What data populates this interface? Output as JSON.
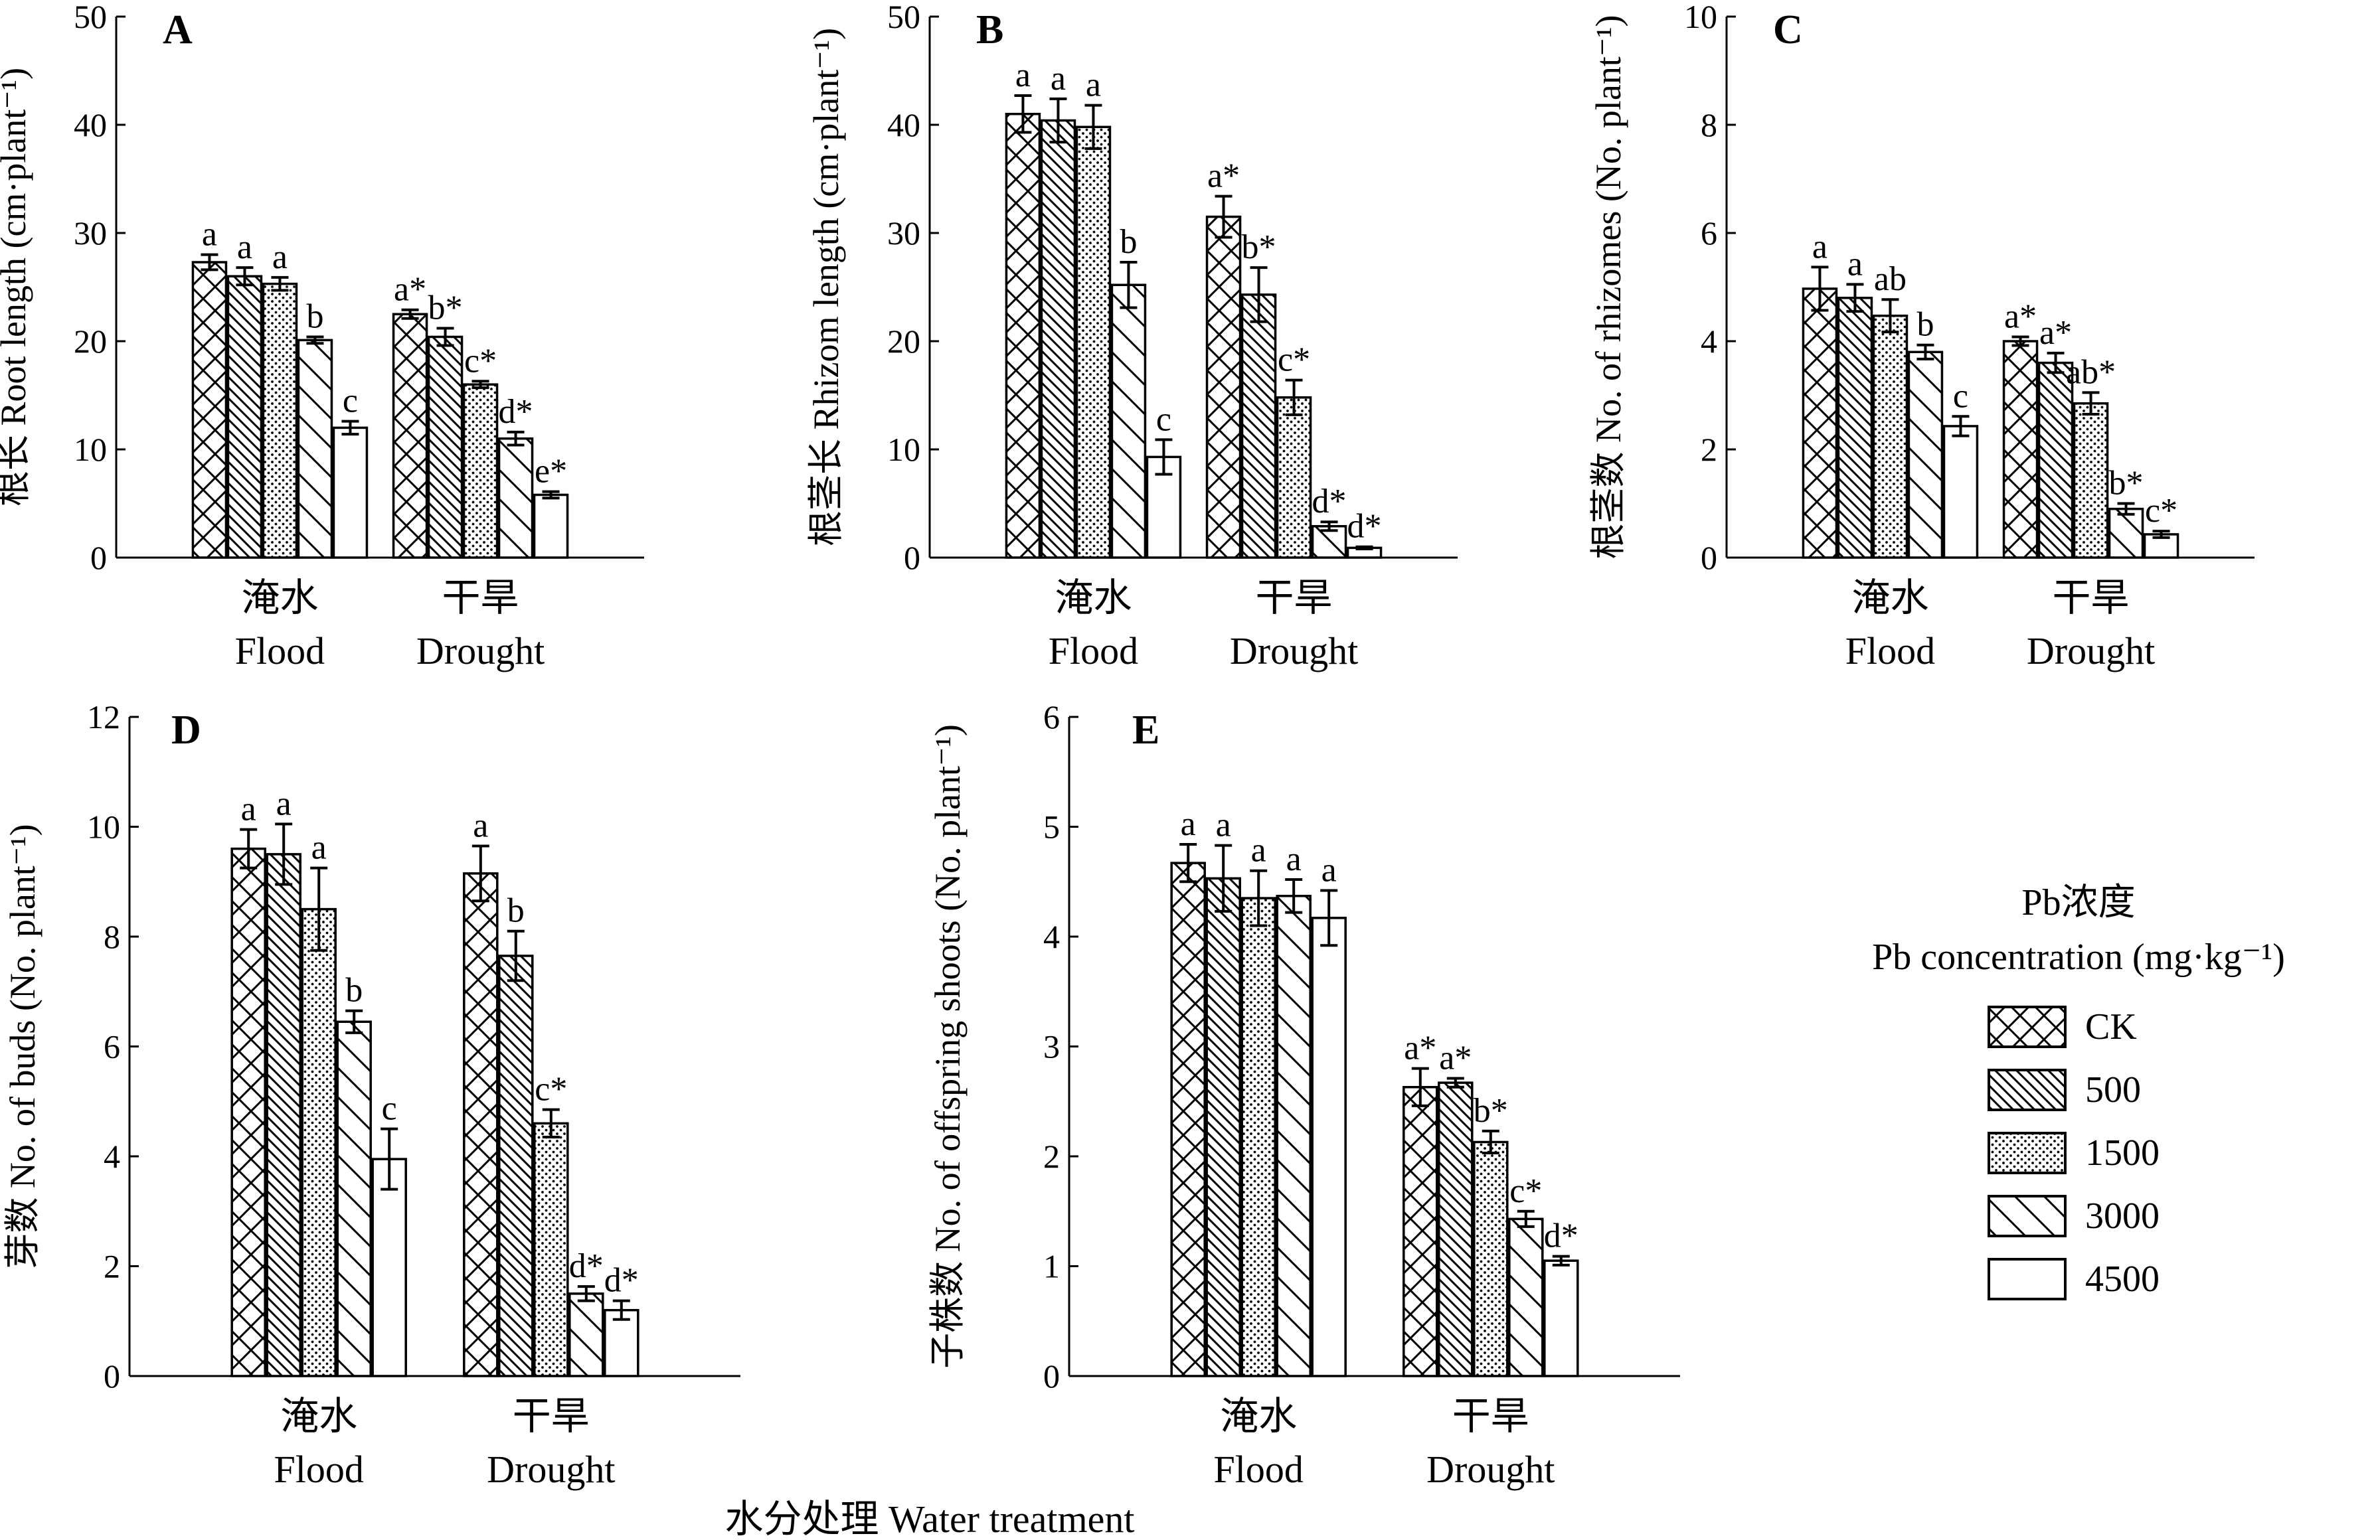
{
  "chart_data": [
    {
      "panel": "A",
      "type": "bar",
      "ylabel": "根长 Root length (cm·plant⁻¹)",
      "ylim": [
        0,
        50
      ],
      "yticks": [
        0,
        10,
        20,
        30,
        40,
        50
      ],
      "categories": [
        "淹水|Flood",
        "干旱|Drought"
      ],
      "series": [
        {
          "name": "CK",
          "values": [
            27.3,
            22.5
          ],
          "errors": [
            0.7,
            0.4
          ],
          "sig": [
            "a",
            "a*"
          ]
        },
        {
          "name": "500",
          "values": [
            26.0,
            20.4
          ],
          "errors": [
            0.8,
            0.8
          ],
          "sig": [
            "a",
            "b*"
          ]
        },
        {
          "name": "1500",
          "values": [
            25.3,
            16.0
          ],
          "errors": [
            0.6,
            0.3
          ],
          "sig": [
            "a",
            "c*"
          ]
        },
        {
          "name": "3000",
          "values": [
            20.1,
            11.0
          ],
          "errors": [
            0.3,
            0.6
          ],
          "sig": [
            "b",
            "d*"
          ]
        },
        {
          "name": "4500",
          "values": [
            12.0,
            5.8
          ],
          "errors": [
            0.6,
            0.3
          ],
          "sig": [
            "c",
            "e*"
          ]
        }
      ]
    },
    {
      "panel": "B",
      "type": "bar",
      "ylabel": "根茎长 Rhizom length (cm·plant⁻¹)",
      "ylim": [
        0,
        50
      ],
      "yticks": [
        0,
        10,
        20,
        30,
        40,
        50
      ],
      "categories": [
        "淹水|Flood",
        "干旱|Drought"
      ],
      "series": [
        {
          "name": "CK",
          "values": [
            41.0,
            31.5
          ],
          "errors": [
            1.7,
            1.9
          ],
          "sig": [
            "a",
            "a*"
          ]
        },
        {
          "name": "500",
          "values": [
            40.4,
            24.3
          ],
          "errors": [
            2.0,
            2.5
          ],
          "sig": [
            "a",
            "b*"
          ]
        },
        {
          "name": "1500",
          "values": [
            39.8,
            14.8
          ],
          "errors": [
            2.0,
            1.6
          ],
          "sig": [
            "a",
            "c*"
          ]
        },
        {
          "name": "3000",
          "values": [
            25.2,
            2.9
          ],
          "errors": [
            2.1,
            0.4
          ],
          "sig": [
            "b",
            "d*"
          ]
        },
        {
          "name": "4500",
          "values": [
            9.3,
            0.9
          ],
          "errors": [
            1.6,
            0.1
          ],
          "sig": [
            "c",
            "d*"
          ]
        }
      ]
    },
    {
      "panel": "C",
      "type": "bar",
      "ylabel": "根茎数 No. of rhizomes (No. plant⁻¹)",
      "ylim": [
        0,
        10
      ],
      "yticks": [
        0,
        2,
        4,
        6,
        8,
        10
      ],
      "categories": [
        "淹水|Flood",
        "干旱|Drought"
      ],
      "series": [
        {
          "name": "CK",
          "values": [
            4.97,
            4.0
          ],
          "errors": [
            0.4,
            0.08
          ],
          "sig": [
            "a",
            "a*"
          ]
        },
        {
          "name": "500",
          "values": [
            4.8,
            3.6
          ],
          "errors": [
            0.25,
            0.18
          ],
          "sig": [
            "a",
            "a*"
          ]
        },
        {
          "name": "1500",
          "values": [
            4.47,
            2.85
          ],
          "errors": [
            0.3,
            0.2
          ],
          "sig": [
            "ab",
            "ab*"
          ]
        },
        {
          "name": "3000",
          "values": [
            3.8,
            0.9
          ],
          "errors": [
            0.13,
            0.1
          ],
          "sig": [
            "b",
            "b*"
          ]
        },
        {
          "name": "4500",
          "values": [
            2.43,
            0.43
          ],
          "errors": [
            0.18,
            0.06
          ],
          "sig": [
            "c",
            "c*"
          ]
        }
      ]
    },
    {
      "panel": "D",
      "type": "bar",
      "ylabel": "芽数 No. of buds (No. plant⁻¹)",
      "ylim": [
        0,
        12
      ],
      "yticks": [
        0,
        2,
        4,
        6,
        8,
        10,
        12
      ],
      "categories": [
        "淹水|Flood",
        "干旱|Drought"
      ],
      "series": [
        {
          "name": "CK",
          "values": [
            9.6,
            9.15
          ],
          "errors": [
            0.35,
            0.5
          ],
          "sig": [
            "a",
            "a"
          ]
        },
        {
          "name": "500",
          "values": [
            9.5,
            7.65
          ],
          "errors": [
            0.55,
            0.45
          ],
          "sig": [
            "a",
            "b"
          ]
        },
        {
          "name": "1500",
          "values": [
            8.5,
            4.6
          ],
          "errors": [
            0.75,
            0.25
          ],
          "sig": [
            "a",
            "c*"
          ]
        },
        {
          "name": "3000",
          "values": [
            6.45,
            1.5
          ],
          "errors": [
            0.2,
            0.13
          ],
          "sig": [
            "b",
            "d*"
          ]
        },
        {
          "name": "4500",
          "values": [
            3.95,
            1.2
          ],
          "errors": [
            0.55,
            0.17
          ],
          "sig": [
            "c",
            "d*"
          ]
        }
      ]
    },
    {
      "panel": "E",
      "type": "bar",
      "ylabel": "子株数 No. of offspring shoots (No. plant⁻¹)",
      "ylim": [
        0,
        6
      ],
      "yticks": [
        0,
        1,
        2,
        3,
        4,
        5,
        6
      ],
      "categories": [
        "淹水|Flood",
        "干旱|Drought"
      ],
      "series": [
        {
          "name": "CK",
          "values": [
            4.67,
            2.63
          ],
          "errors": [
            0.17,
            0.17
          ],
          "sig": [
            "a",
            "a*"
          ]
        },
        {
          "name": "500",
          "values": [
            4.53,
            2.67
          ],
          "errors": [
            0.3,
            0.04
          ],
          "sig": [
            "a",
            "a*"
          ]
        },
        {
          "name": "1500",
          "values": [
            4.35,
            2.13
          ],
          "errors": [
            0.25,
            0.1
          ],
          "sig": [
            "a",
            "b*"
          ]
        },
        {
          "name": "3000",
          "values": [
            4.37,
            1.43
          ],
          "errors": [
            0.15,
            0.07
          ],
          "sig": [
            "a",
            "c*"
          ]
        },
        {
          "name": "4500",
          "values": [
            4.17,
            1.05
          ],
          "errors": [
            0.25,
            0.04
          ],
          "sig": [
            "a",
            "d*"
          ]
        }
      ]
    }
  ],
  "legend": {
    "title_line1": "Pb浓度",
    "title_line2": "Pb concentration (mg·kg⁻¹)",
    "entries": [
      "CK",
      "500",
      "1500",
      "3000",
      "4500"
    ],
    "patterns": [
      "crosshatch",
      "diag-dense",
      "dots",
      "diag-sparse",
      "blank"
    ]
  },
  "xlabel": "水分处理 Water treatment"
}
